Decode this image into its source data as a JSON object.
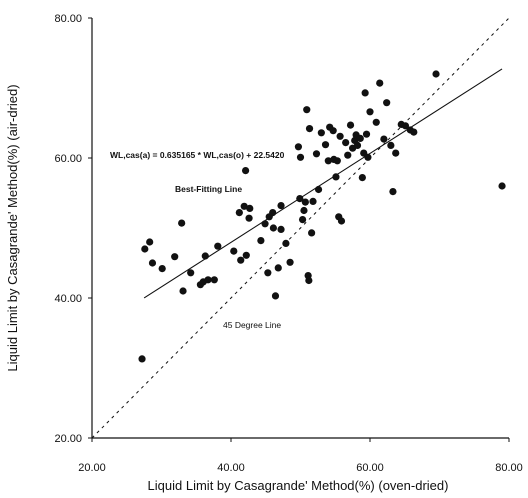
{
  "chart_data": {
    "type": "scatter",
    "title": "",
    "xlabel": "Liquid Limit by Casagrande' Method(%) (oven-dried)",
    "ylabel": "Liquid Limit by Casagrande' Method(%) (air-dried)",
    "xlim": [
      20,
      80
    ],
    "ylim": [
      20,
      80
    ],
    "x_ticks": [
      "20.00",
      "40.00",
      "60.00",
      "80.00"
    ],
    "y_ticks": [
      "20.00",
      "40.00",
      "60.00",
      "80.00"
    ],
    "grid": false,
    "fit_line": {
      "label": "Best-Fitting Line",
      "equation": "WL,cas(a) = 0.635165 * WL,cas(o) + 22.5420",
      "slope": 0.635165,
      "intercept": 22.542,
      "x_range": [
        27.5,
        79
      ]
    },
    "reference_line": {
      "label": "45 Degree Line",
      "slope": 1,
      "intercept": 0
    },
    "points": [
      [
        27.2,
        31.3
      ],
      [
        27.6,
        47.0
      ],
      [
        28.3,
        48.0
      ],
      [
        28.7,
        45.0
      ],
      [
        30.1,
        44.2
      ],
      [
        31.9,
        45.9
      ],
      [
        32.9,
        50.7
      ],
      [
        33.1,
        41.0
      ],
      [
        34.2,
        43.6
      ],
      [
        35.6,
        41.9
      ],
      [
        36.0,
        42.3
      ],
      [
        36.3,
        46.0
      ],
      [
        36.7,
        42.6
      ],
      [
        37.6,
        42.6
      ],
      [
        38.1,
        47.4
      ],
      [
        40.4,
        46.7
      ],
      [
        41.2,
        52.2
      ],
      [
        41.4,
        45.4
      ],
      [
        41.9,
        53.1
      ],
      [
        42.1,
        58.2
      ],
      [
        42.2,
        46.1
      ],
      [
        42.6,
        51.4
      ],
      [
        42.7,
        52.8
      ],
      [
        44.3,
        48.2
      ],
      [
        44.9,
        50.6
      ],
      [
        45.3,
        43.6
      ],
      [
        45.5,
        51.6
      ],
      [
        46.0,
        52.2
      ],
      [
        46.1,
        50.0
      ],
      [
        46.4,
        40.3
      ],
      [
        46.8,
        44.3
      ],
      [
        47.2,
        53.2
      ],
      [
        47.2,
        49.8
      ],
      [
        47.9,
        47.8
      ],
      [
        48.5,
        45.1
      ],
      [
        49.7,
        61.6
      ],
      [
        49.9,
        54.2
      ],
      [
        50.0,
        60.1
      ],
      [
        50.3,
        51.2
      ],
      [
        50.5,
        52.5
      ],
      [
        50.7,
        53.7
      ],
      [
        50.9,
        66.9
      ],
      [
        51.1,
        43.2
      ],
      [
        51.2,
        42.5
      ],
      [
        51.3,
        64.2
      ],
      [
        51.6,
        49.3
      ],
      [
        51.8,
        53.8
      ],
      [
        52.3,
        60.6
      ],
      [
        52.6,
        55.5
      ],
      [
        53.0,
        63.6
      ],
      [
        53.6,
        61.9
      ],
      [
        54.0,
        59.6
      ],
      [
        54.2,
        64.4
      ],
      [
        54.7,
        63.9
      ],
      [
        54.8,
        59.8
      ],
      [
        55.1,
        57.3
      ],
      [
        55.3,
        59.6
      ],
      [
        55.5,
        51.6
      ],
      [
        55.7,
        63.1
      ],
      [
        55.9,
        51.0
      ],
      [
        56.5,
        62.2
      ],
      [
        56.8,
        60.4
      ],
      [
        57.2,
        64.7
      ],
      [
        57.5,
        61.4
      ],
      [
        57.8,
        62.5
      ],
      [
        58.0,
        63.3
      ],
      [
        58.2,
        61.8
      ],
      [
        58.6,
        62.8
      ],
      [
        58.9,
        57.2
      ],
      [
        59.1,
        60.7
      ],
      [
        59.3,
        69.3
      ],
      [
        59.5,
        63.4
      ],
      [
        59.7,
        60.1
      ],
      [
        60.0,
        66.6
      ],
      [
        60.9,
        65.1
      ],
      [
        61.4,
        70.7
      ],
      [
        62.0,
        62.7
      ],
      [
        62.4,
        67.9
      ],
      [
        63.0,
        61.8
      ],
      [
        63.3,
        55.2
      ],
      [
        63.7,
        60.7
      ],
      [
        64.5,
        64.8
      ],
      [
        65.1,
        64.6
      ],
      [
        65.8,
        64.0
      ],
      [
        66.3,
        63.7
      ],
      [
        69.5,
        72.0
      ],
      [
        79.0,
        56.0
      ]
    ]
  }
}
